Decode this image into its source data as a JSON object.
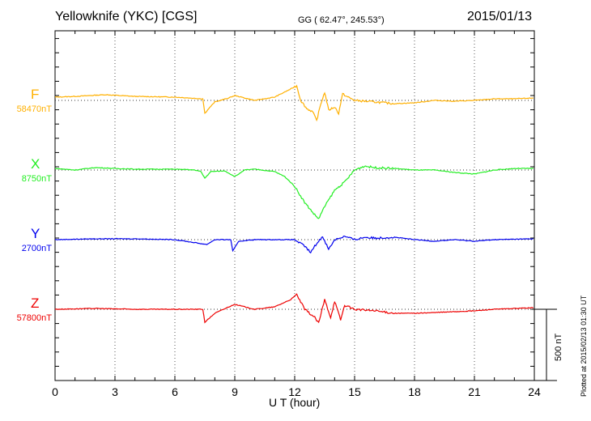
{
  "header": {
    "station": "Yellowknife (YKC)  [CGS]",
    "coords": "GG ( 62.47°, 245.53°)",
    "date": "2015/01/13"
  },
  "footer": {
    "plotted": "Plotted at 2015/02/13 01:30 UT"
  },
  "chart_data": {
    "type": "line",
    "xlabel": "U T (hour)",
    "xlim": [
      0,
      24
    ],
    "xticks": [
      "0",
      "3",
      "6",
      "9",
      "12",
      "15",
      "18",
      "21",
      "24"
    ],
    "scale_bar": "500 nT",
    "grid": true,
    "series": [
      {
        "name": "F",
        "baseline": "58470nT",
        "color": "#ffb000",
        "x": [
          0,
          1,
          2.5,
          4,
          6,
          7.4,
          7.5,
          7.7,
          8,
          8.7,
          9,
          10,
          11,
          11.8,
          12.1,
          12.3,
          12.6,
          12.9,
          13.1,
          13.3,
          13.5,
          13.7,
          14,
          14.2,
          14.4,
          14.6,
          15,
          16,
          17,
          18,
          19,
          20,
          21,
          22,
          23,
          24
        ],
        "y": [
          23,
          28,
          40,
          28,
          23,
          11,
          -91,
          -57,
          -11,
          17,
          34,
          0,
          23,
          80,
          103,
          0,
          -57,
          -80,
          -142,
          -28,
          57,
          -68,
          -46,
          -91,
          46,
          28,
          0,
          -11,
          -23,
          -17,
          0,
          -6,
          0,
          11,
          11,
          17
        ]
      },
      {
        "name": "X",
        "baseline": "8750nT",
        "color": "#22ee22",
        "x": [
          0,
          1,
          2,
          3,
          4,
          6,
          7,
          7.3,
          7.5,
          7.8,
          8.5,
          9,
          9.5,
          10,
          11,
          11.5,
          12,
          12.5,
          13,
          13.2,
          13.5,
          14,
          14.5,
          15,
          15.5,
          16,
          17,
          18,
          19,
          20,
          21,
          22,
          23,
          24
        ],
        "y": [
          11,
          0,
          17,
          11,
          6,
          6,
          0,
          -11,
          -57,
          -11,
          -6,
          -46,
          0,
          6,
          -11,
          -46,
          -114,
          -228,
          -314,
          -342,
          -256,
          -142,
          -85,
          0,
          28,
          17,
          11,
          0,
          0,
          -17,
          -28,
          0,
          11,
          11
        ]
      },
      {
        "name": "Y",
        "baseline": "2700nT",
        "color": "#0000ee",
        "x": [
          0,
          2,
          4,
          6,
          7.6,
          8,
          8.8,
          8.9,
          9.2,
          10,
          12,
          12.5,
          12.8,
          13,
          13.4,
          13.7,
          14,
          14.5,
          15,
          15.5,
          16,
          17,
          18,
          19,
          20,
          21,
          22,
          24
        ],
        "y": [
          0,
          6,
          6,
          0,
          -34,
          0,
          0,
          -80,
          -11,
          0,
          0,
          -46,
          -91,
          -46,
          23,
          -68,
          0,
          23,
          0,
          17,
          11,
          17,
          0,
          -11,
          0,
          -11,
          0,
          6
        ]
      },
      {
        "name": "Z",
        "baseline": "57800nT",
        "color": "#ee0000",
        "x": [
          0,
          2,
          4,
          6,
          7.4,
          7.5,
          8,
          8.7,
          9,
          10,
          11,
          11.8,
          12.1,
          12.5,
          13,
          13.2,
          13.5,
          13.8,
          14,
          14.3,
          14.5,
          15,
          16,
          17,
          18,
          19,
          20,
          21,
          22,
          24
        ],
        "y": [
          0,
          6,
          0,
          0,
          0,
          -91,
          -28,
          17,
          34,
          0,
          17,
          68,
          103,
          0,
          -57,
          -97,
          68,
          -57,
          57,
          -74,
          28,
          0,
          -11,
          -28,
          -28,
          -23,
          -17,
          -11,
          0,
          11
        ]
      }
    ]
  }
}
